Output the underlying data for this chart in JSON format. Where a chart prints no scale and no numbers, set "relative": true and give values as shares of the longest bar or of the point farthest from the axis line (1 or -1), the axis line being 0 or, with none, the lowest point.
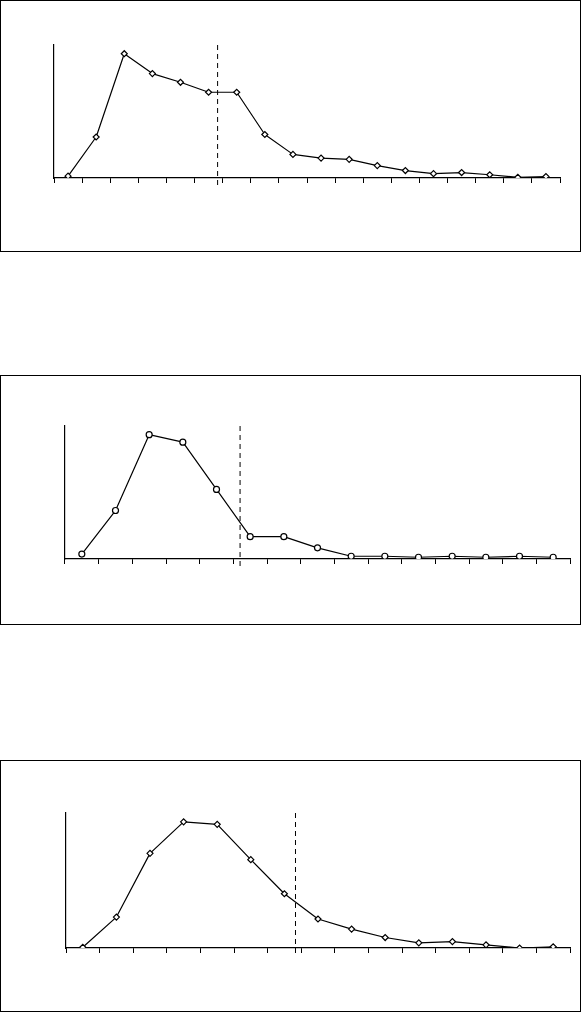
{
  "chart_data": [
    {
      "type": "line",
      "relative": true,
      "marker": "diamond",
      "line_style": "solid",
      "grid": false,
      "legend": false,
      "tick_labels": false,
      "categories": [
        null,
        null,
        null,
        null,
        null,
        null,
        null,
        null,
        null,
        null,
        null,
        null,
        null,
        null,
        null,
        null,
        null,
        null
      ],
      "series": [
        {
          "color": "#000000",
          "values": [
            0.015,
            0.33,
            1,
            0.84,
            0.77,
            0.69,
            0.69,
            0.35,
            0.19,
            0.16,
            0.15,
            0.1,
            0.06,
            0.035,
            0.044,
            0.026,
            0.006,
            0.012
          ]
        }
      ]
    },
    {
      "type": "line",
      "relative": true,
      "marker": "circle",
      "line_style": "solid",
      "grid": false,
      "legend": false,
      "tick_labels": false,
      "categories": [
        null,
        null,
        null,
        null,
        null,
        null,
        null,
        null,
        null,
        null,
        null,
        null,
        null,
        null,
        null
      ],
      "series": [
        {
          "color": "#000000",
          "values": [
            0.04,
            0.39,
            1,
            0.94,
            0.56,
            0.18,
            0.18,
            0.09,
            0.022,
            0.022,
            0.014,
            0.022,
            0.014,
            0.022,
            0.014
          ]
        }
      ]
    },
    {
      "type": "line",
      "relative": true,
      "marker": "diamond",
      "line_style": "solid",
      "grid": false,
      "legend": false,
      "tick_labels": false,
      "categories": [
        null,
        null,
        null,
        null,
        null,
        null,
        null,
        null,
        null,
        null,
        null,
        null,
        null,
        null,
        null
      ],
      "series": [
        {
          "color": "#000000",
          "values": [
            0.006,
            0.245,
            0.75,
            1,
            0.98,
            0.7,
            0.43,
            0.23,
            0.15,
            0.083,
            0.041,
            0.051,
            0.025,
            0,
            0.01
          ]
        }
      ]
    }
  ]
}
